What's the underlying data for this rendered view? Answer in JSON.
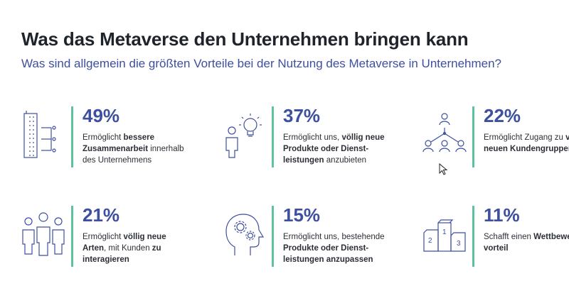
{
  "header": {
    "title": "Was das Metaverse den Unternehmen bringen kann",
    "subtitle": "Was sind allgemein die größten Vorteile bei der Nutzung des Metaverse in Unternehmen?"
  },
  "colors": {
    "accent_blue": "#3d4f9f",
    "accent_green": "#5cc39a",
    "text_dark": "#1f232b"
  },
  "cards": [
    {
      "icon": "building-network-icon",
      "value": "49%",
      "parts": [
        {
          "text": "Ermöglicht ",
          "bold": false
        },
        {
          "text": "bessere Zusammenarbeit",
          "bold": true
        },
        {
          "text": " innerhalb des Unternehmens",
          "bold": false
        }
      ]
    },
    {
      "icon": "person-lightbulb-icon",
      "value": "37%",
      "parts": [
        {
          "text": "Ermöglicht uns, ",
          "bold": false
        },
        {
          "text": "völlig neue Produkte oder Dienst-leistungen",
          "bold": true
        },
        {
          "text": " anzubieten",
          "bold": false
        }
      ]
    },
    {
      "icon": "people-hierarchy-icon",
      "value": "22%",
      "parts": [
        {
          "text": "Ermöglicht Zugang zu ",
          "bold": false
        },
        {
          "text": "völlig neuen Kundengruppen",
          "bold": true
        }
      ]
    },
    {
      "icon": "people-group-icon",
      "value": "21%",
      "parts": [
        {
          "text": "Ermöglicht ",
          "bold": false
        },
        {
          "text": "völlig neue Arten",
          "bold": true
        },
        {
          "text": ", mit Kunden ",
          "bold": false
        },
        {
          "text": "zu interagieren",
          "bold": true
        }
      ]
    },
    {
      "icon": "head-gears-icon",
      "value": "15%",
      "parts": [
        {
          "text": "Ermöglicht uns, bestehende ",
          "bold": false
        },
        {
          "text": "Produkte oder Dienst-leistungen anzupassen",
          "bold": true
        }
      ]
    },
    {
      "icon": "podium-icon",
      "value": "11%",
      "parts": [
        {
          "text": "Schafft einen ",
          "bold": false
        },
        {
          "text": "Wettbewerbs-vorteil",
          "bold": true
        }
      ]
    }
  ],
  "podium_labels": [
    "2",
    "1",
    "3"
  ]
}
